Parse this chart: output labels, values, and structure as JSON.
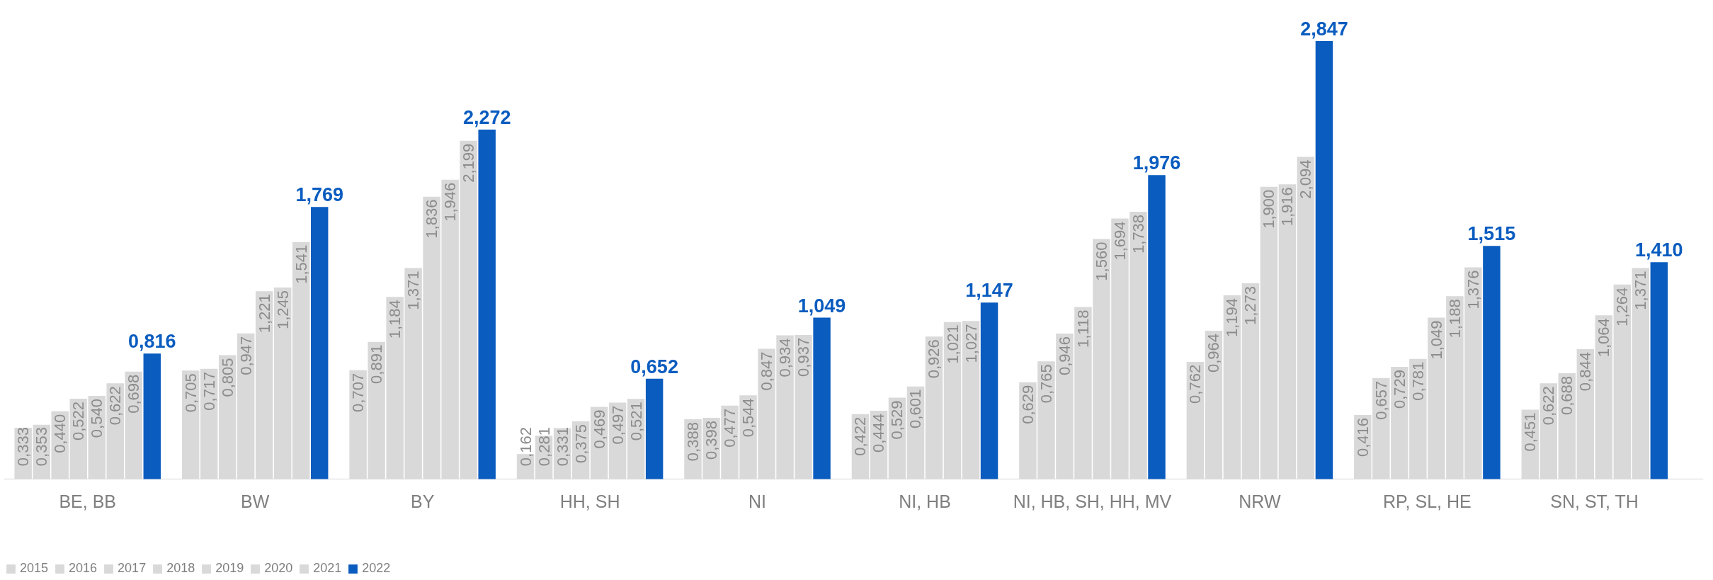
{
  "chart_data": {
    "type": "bar",
    "categories": [
      "BE, BB",
      "BW",
      "BY",
      "HH, SH",
      "NI",
      "NI, HB",
      "NI, HB, SH, HH, MV",
      "NRW",
      "RP, SL, HE",
      "SN, ST, TH"
    ],
    "legend": "bottom left",
    "grid": false,
    "series": [
      {
        "name": "2015",
        "color": "#d9d9d9",
        "values": [
          0.333,
          0.705,
          0.707,
          0.162,
          0.388,
          0.422,
          0.629,
          0.762,
          0.416,
          0.451
        ],
        "value_labels": [
          "0,333",
          "0,705",
          "0,707",
          "0,162",
          "0,388",
          "0,422",
          "0,629",
          "0,762",
          "0,416",
          "0,451"
        ]
      },
      {
        "name": "2016",
        "color": "#d9d9d9",
        "values": [
          0.353,
          0.717,
          0.891,
          0.281,
          0.398,
          0.444,
          0.765,
          0.964,
          0.657,
          0.622
        ],
        "value_labels": [
          "0,353",
          "0,717",
          "0,891",
          "0,281",
          "0,398",
          "0,444",
          "0,765",
          "0,964",
          "0,657",
          "0,622"
        ]
      },
      {
        "name": "2017",
        "color": "#d9d9d9",
        "values": [
          0.44,
          0.805,
          1.184,
          0.331,
          0.477,
          0.529,
          0.946,
          1.194,
          0.729,
          0.688
        ],
        "value_labels": [
          "0,440",
          "0,805",
          "1,184",
          "0,331",
          "0,477",
          "0,529",
          "0,946",
          "1,194",
          "0,729",
          "0,688"
        ]
      },
      {
        "name": "2018",
        "color": "#d9d9d9",
        "values": [
          0.522,
          0.947,
          1.371,
          0.375,
          0.544,
          0.601,
          1.118,
          1.273,
          0.781,
          0.844
        ],
        "value_labels": [
          "0,522",
          "0,947",
          "1,371",
          "0,375",
          "0,544",
          "0,601",
          "1,118",
          "1,273",
          "0,781",
          "0,844"
        ]
      },
      {
        "name": "2019",
        "color": "#d9d9d9",
        "values": [
          0.54,
          1.221,
          1.836,
          0.469,
          0.847,
          0.926,
          1.56,
          1.9,
          1.049,
          1.064
        ],
        "value_labels": [
          "0,540",
          "1,221",
          "1,836",
          "0,469",
          "0,847",
          "0,926",
          "1,560",
          "1,900",
          "1,049",
          "1,064"
        ]
      },
      {
        "name": "2020",
        "color": "#d9d9d9",
        "values": [
          0.622,
          1.245,
          1.946,
          0.497,
          0.934,
          1.021,
          1.694,
          1.916,
          1.188,
          1.264
        ],
        "value_labels": [
          "0,622",
          "1,245",
          "1,946",
          "0,497",
          "0,934",
          "1,021",
          "1,694",
          "1,916",
          "1,188",
          "1,264"
        ]
      },
      {
        "name": "2021",
        "color": "#d9d9d9",
        "values": [
          0.698,
          1.541,
          2.199,
          0.521,
          0.937,
          1.027,
          1.738,
          2.094,
          1.376,
          1.371
        ],
        "value_labels": [
          "0,698",
          "1,541",
          "2,199",
          "0,521",
          "0,937",
          "1,027",
          "1,738",
          "2,094",
          "1,376",
          "1,371"
        ]
      },
      {
        "name": "2022",
        "color": "#0a5cbf",
        "values": [
          0.816,
          1.769,
          2.272,
          0.652,
          1.049,
          1.147,
          1.976,
          2.847,
          1.515,
          1.41
        ],
        "value_labels": [
          "0,816",
          "1,769",
          "2,272",
          "0,652",
          "1,049",
          "1,147",
          "1,976",
          "2,847",
          "1,515",
          "1,410"
        ]
      }
    ]
  }
}
